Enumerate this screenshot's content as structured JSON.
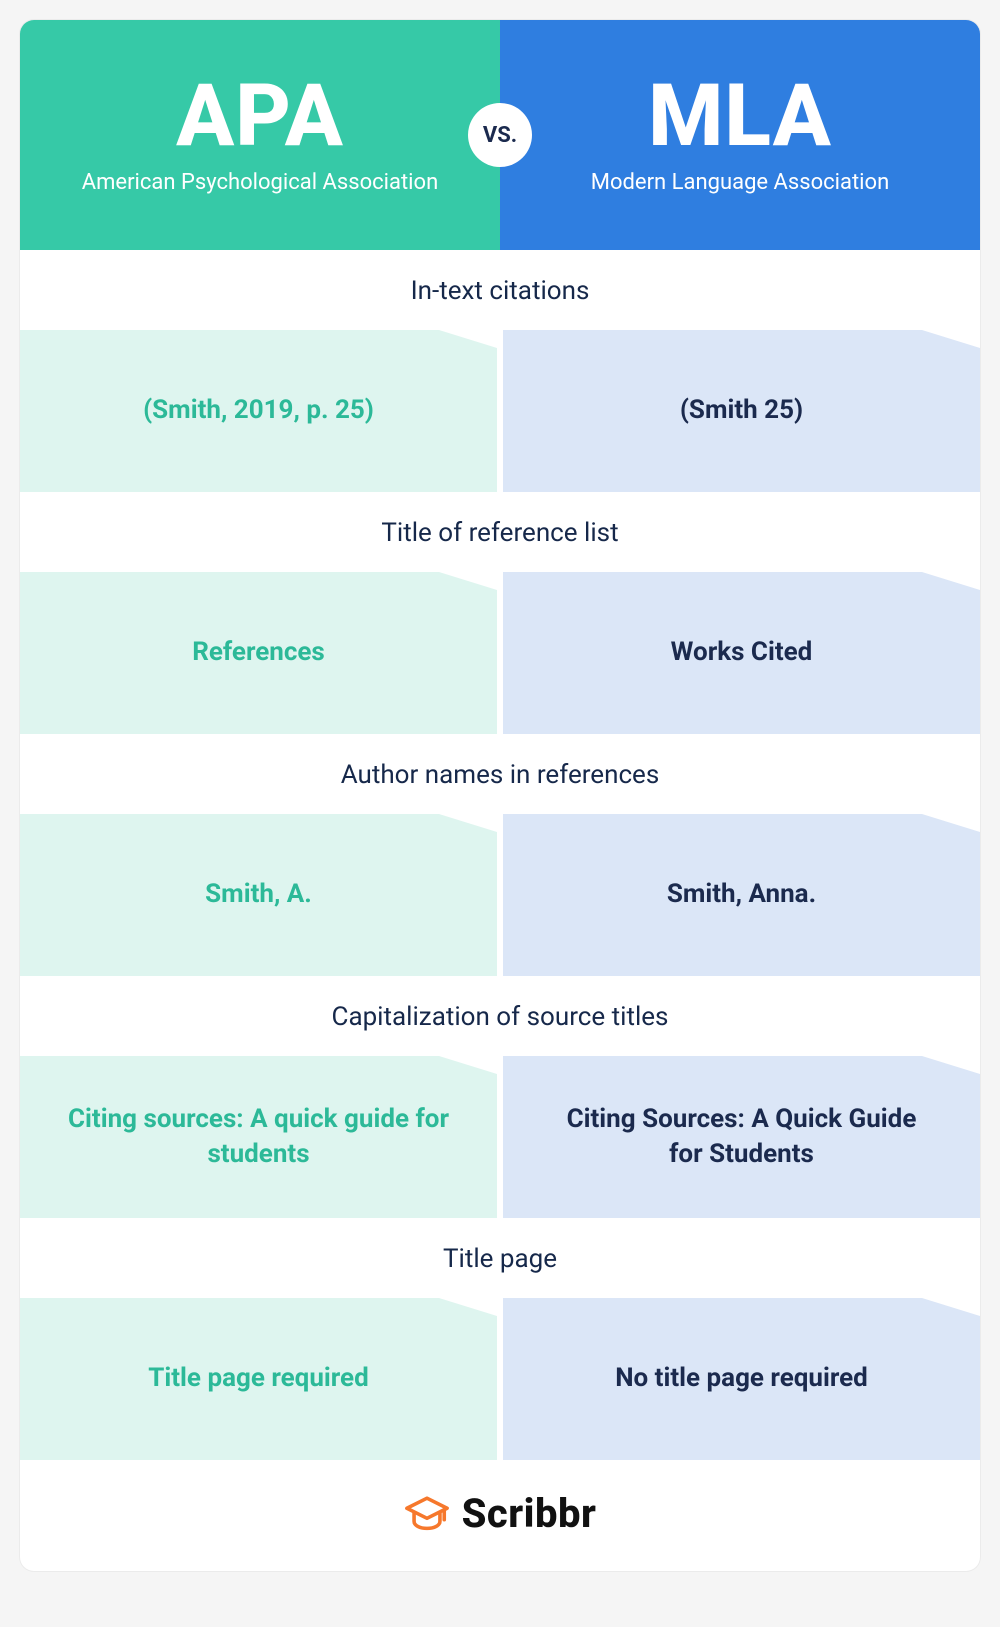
{
  "colors": {
    "apa_header_bg": "#36c9a7",
    "mla_header_bg": "#2f7ee0",
    "apa_cell_bg": "#def5ef",
    "mla_cell_bg": "#dbe6f7",
    "apa_text": "#2cb998",
    "mla_text": "#1b2a4e",
    "section_text": "#16284a",
    "vs_text": "#1b2a4e",
    "footer_icon": "#f6782c",
    "footer_text": "#111111",
    "white": "#ffffff"
  },
  "header": {
    "left": {
      "abbr": "APA",
      "full": "American Psychological Association"
    },
    "right": {
      "abbr": "MLA",
      "full": "Modern Language Association"
    },
    "vs": "VS."
  },
  "sections": [
    {
      "label": "In-text citations",
      "apa": "(Smith, 2019, p. 25)",
      "mla": "(Smith 25)"
    },
    {
      "label": "Title of reference list",
      "apa": "References",
      "mla": "Works Cited"
    },
    {
      "label": "Author names in references",
      "apa": "Smith, A.",
      "mla": "Smith, Anna."
    },
    {
      "label": "Capitalization of source titles",
      "apa": "Citing sources: A quick guide for students",
      "mla": "Citing Sources: A Quick Guide for Students"
    },
    {
      "label": "Title page",
      "apa": "Title page required",
      "mla": "No title page required"
    }
  ],
  "footer": {
    "brand": "Scribbr"
  }
}
